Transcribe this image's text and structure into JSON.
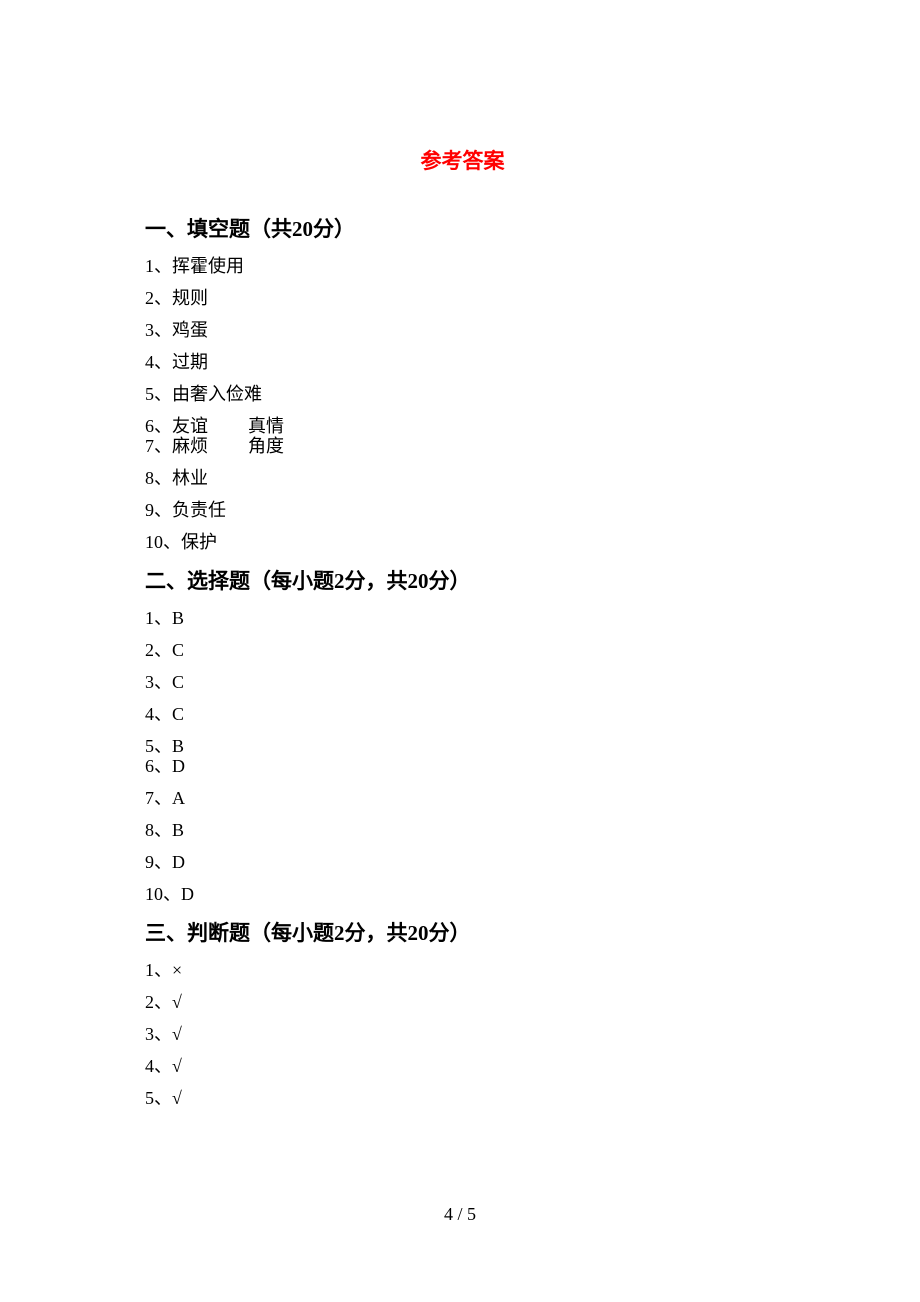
{
  "title": "参考答案",
  "page_number": "4 / 5",
  "title_color": "#ff0000",
  "body_text_color": "#000000",
  "font_size_body": 18,
  "font_size_heading": 21,
  "sections": {
    "s1": {
      "heading": "一、填空题（共20分）",
      "items": [
        {
          "n": "1",
          "a": "挥霍使用"
        },
        {
          "n": "2",
          "a": "规则"
        },
        {
          "n": "3",
          "a": "鸡蛋"
        },
        {
          "n": "4",
          "a": "过期"
        },
        {
          "n": "5",
          "a": "由奢入俭难"
        },
        {
          "n": "6",
          "a": "友谊",
          "a2": "真情",
          "tight": true
        },
        {
          "n": "7",
          "a": "麻烦",
          "a2": "角度"
        },
        {
          "n": "8",
          "a": "林业"
        },
        {
          "n": "9",
          "a": "负责任"
        },
        {
          "n": "10",
          "a": "保护"
        }
      ]
    },
    "s2": {
      "heading": "二、选择题（每小题2分，共20分）",
      "items": [
        {
          "n": "1",
          "a": "B"
        },
        {
          "n": "2",
          "a": "C"
        },
        {
          "n": "3",
          "a": "C"
        },
        {
          "n": "4",
          "a": "C"
        },
        {
          "n": "5",
          "a": "B",
          "tight": true
        },
        {
          "n": "6",
          "a": "D"
        },
        {
          "n": "7",
          "a": "A"
        },
        {
          "n": "8",
          "a": "B"
        },
        {
          "n": "9",
          "a": "D"
        },
        {
          "n": "10",
          "a": "D"
        }
      ]
    },
    "s3": {
      "heading": "三、判断题（每小题2分，共20分）",
      "items": [
        {
          "n": "1",
          "a": "×"
        },
        {
          "n": "2",
          "a": "√"
        },
        {
          "n": "3",
          "a": "√"
        },
        {
          "n": "4",
          "a": "√"
        },
        {
          "n": "5",
          "a": "√"
        }
      ]
    }
  }
}
